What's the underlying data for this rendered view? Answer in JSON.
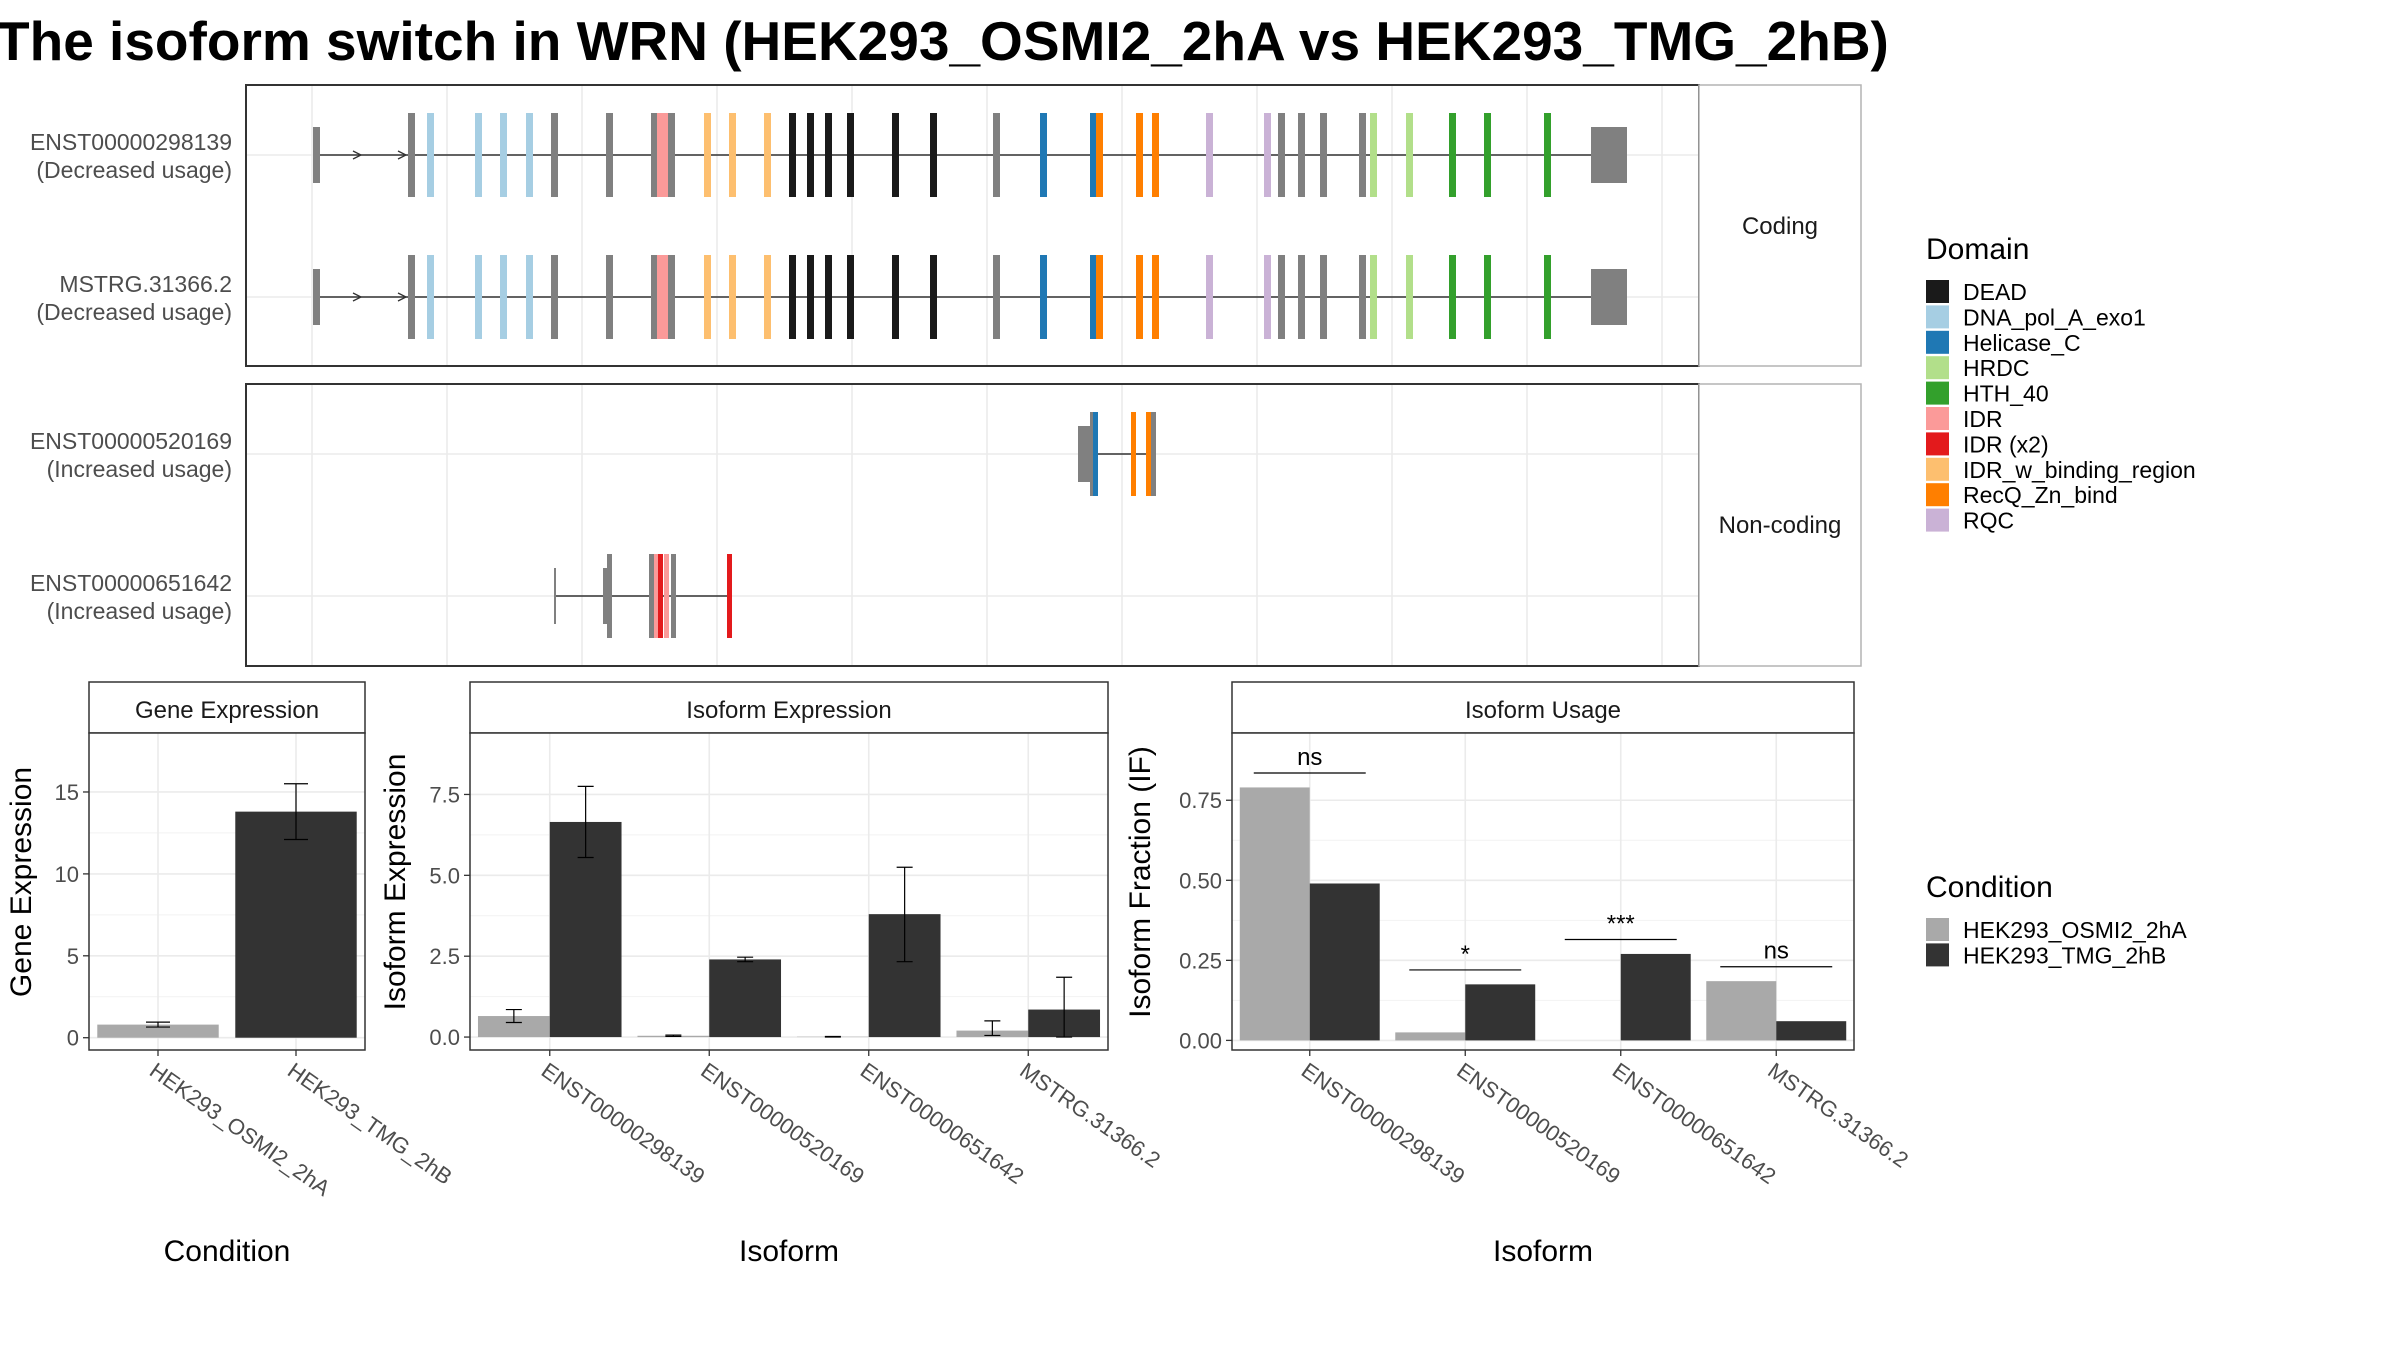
{
  "title": "The isoform switch in WRN (HEK293_OSMI2_2hA vs HEK293_TMG_2hB)",
  "colors": {
    "DEAD": "#1a1a1a",
    "DNA_pol_A_exo1": "#a6cee3",
    "Helicase_C": "#1f78b4",
    "HRDC": "#b2df8a",
    "HTH_40": "#33a02c",
    "IDR": "#fb9a99",
    "IDR (x2)": "#e31a1c",
    "IDR_w_binding_region": "#fdbf6f",
    "RecQ_Zn_bind": "#ff7f00",
    "RQC": "#cab2d6",
    "exon": "#808080",
    "cond_A": "#a9a9a9",
    "cond_B": "#333333"
  },
  "structure": {
    "facets": [
      "Coding",
      "Non-coding"
    ],
    "transcripts": [
      {
        "id": "ENST00000298139",
        "usage": "(Decreased usage)",
        "facet": "Coding",
        "template": "full"
      },
      {
        "id": "MSTRG.31366.2",
        "usage": "(Decreased usage)",
        "facet": "Coding",
        "template": "full"
      },
      {
        "id": "ENST00000520169",
        "usage": "(Increased usage)",
        "facet": "Non-coding",
        "template": "fragment_helicase"
      },
      {
        "id": "ENST00000651642",
        "usage": "(Increased usage)",
        "facet": "Non-coding",
        "template": "fragment_idr"
      }
    ]
  },
  "legends": {
    "domain_title": "Domain",
    "domains": [
      "DEAD",
      "DNA_pol_A_exo1",
      "Helicase_C",
      "HRDC",
      "HTH_40",
      "IDR",
      "IDR (x2)",
      "IDR_w_binding_region",
      "RecQ_Zn_bind",
      "RQC"
    ],
    "condition_title": "Condition",
    "conditions": [
      "HEK293_OSMI2_2hA",
      "HEK293_TMG_2hB"
    ]
  },
  "chart_data": [
    {
      "type": "bar",
      "panel": "Gene Expression",
      "xlabel": "Condition",
      "ylabel": "Gene Expression",
      "categories": [
        "HEK293_OSMI2_2hA",
        "HEK293_TMG_2hB"
      ],
      "values": [
        0.8,
        13.8
      ],
      "error_low": [
        0.65,
        12.1
      ],
      "error_high": [
        0.95,
        15.5
      ],
      "yticks": [
        0,
        5,
        10,
        15
      ],
      "ylim": [
        -0.75,
        18.6
      ]
    },
    {
      "type": "bar",
      "panel": "Isoform Expression",
      "xlabel": "Isoform",
      "ylabel": "Isoform Expression",
      "categories": [
        "ENST00000298139",
        "ENST00000520169",
        "ENST00000651642",
        "MSTRG.31366.2"
      ],
      "series": [
        {
          "name": "HEK293_OSMI2_2hA",
          "values": [
            0.65,
            0.04,
            0.01,
            0.2
          ],
          "error_low": [
            0.45,
            0.02,
            0.0,
            0.05
          ],
          "error_high": [
            0.85,
            0.06,
            0.02,
            0.5
          ]
        },
        {
          "name": "HEK293_TMG_2hB",
          "values": [
            6.65,
            2.4,
            3.8,
            0.85
          ],
          "error_low": [
            5.55,
            2.33,
            2.33,
            0.0
          ],
          "error_high": [
            7.75,
            2.47,
            5.25,
            1.85
          ]
        }
      ],
      "yticks": [
        "0.0",
        "2.5",
        "5.0",
        "7.5"
      ],
      "ylim": [
        -0.4,
        9.4
      ]
    },
    {
      "type": "bar",
      "panel": "Isoform Usage",
      "xlabel": "Isoform",
      "ylabel": "Isoform Fraction (IF)",
      "categories": [
        "ENST00000298139",
        "ENST00000520169",
        "ENST00000651642",
        "MSTRG.31366.2"
      ],
      "series": [
        {
          "name": "HEK293_OSMI2_2hA",
          "values": [
            0.79,
            0.025,
            0.0,
            0.185
          ]
        },
        {
          "name": "HEK293_TMG_2hB",
          "values": [
            0.49,
            0.175,
            0.27,
            0.06
          ]
        }
      ],
      "significance": [
        "ns",
        "*",
        "***",
        "ns"
      ],
      "yticks": [
        "0.00",
        "0.25",
        "0.50",
        "0.75"
      ],
      "ylim": [
        -0.03,
        0.96
      ]
    }
  ]
}
